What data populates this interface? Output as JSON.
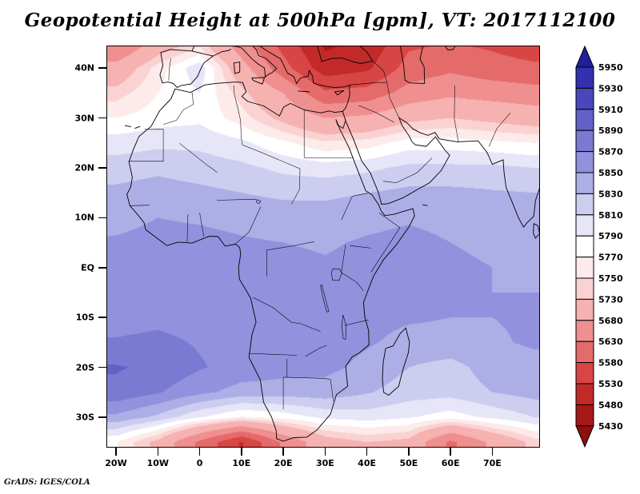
{
  "page": {
    "credit": "GrADS: IGES/COLA"
  },
  "chart_data": {
    "type": "heatmap",
    "title": "Geopotential Height at 500hPa [gpm], VT: 2017112100",
    "variable": "Geopotential Height",
    "pressure_level": "500hPa",
    "units": "gpm",
    "valid_time": "2017112100",
    "projection": "latlon",
    "region": "Africa / Europe / Middle East",
    "lon_range": [
      -22.3,
      81.4
    ],
    "lat_range": [
      -36.1,
      44.5
    ],
    "grid_on": false,
    "legend_position": "right-colorbar",
    "xticks": [
      {
        "value": -20,
        "label": "20W"
      },
      {
        "value": -10,
        "label": "10W"
      },
      {
        "value": 0,
        "label": "0"
      },
      {
        "value": 10,
        "label": "10E"
      },
      {
        "value": 20,
        "label": "20E"
      },
      {
        "value": 30,
        "label": "30E"
      },
      {
        "value": 40,
        "label": "40E"
      },
      {
        "value": 50,
        "label": "50E"
      },
      {
        "value": 60,
        "label": "60E"
      },
      {
        "value": 70,
        "label": "70E"
      }
    ],
    "yticks": [
      {
        "value": 40,
        "label": "40N"
      },
      {
        "value": 30,
        "label": "30N"
      },
      {
        "value": 20,
        "label": "20N"
      },
      {
        "value": 10,
        "label": "10N"
      },
      {
        "value": 0,
        "label": "EQ"
      },
      {
        "value": -10,
        "label": "10S"
      },
      {
        "value": -20,
        "label": "20S"
      },
      {
        "value": -30,
        "label": "30S"
      }
    ],
    "colorbar": {
      "levels": [
        5430,
        5480,
        5530,
        5580,
        5630,
        5680,
        5730,
        5750,
        5770,
        5790,
        5810,
        5830,
        5850,
        5870,
        5890,
        5910,
        5930,
        5950
      ],
      "labels_top_to_bottom": [
        "5950",
        "5930",
        "5910",
        "5890",
        "5870",
        "5850",
        "5830",
        "5810",
        "5790",
        "5770",
        "5750",
        "5730",
        "5680",
        "5630",
        "5580",
        "5530",
        "5480",
        "5430"
      ],
      "colors_low_to_high": [
        "#8f0f0f",
        "#a81717",
        "#c22a2a",
        "#d84545",
        "#e56a6a",
        "#ef8f8f",
        "#f6b1b1",
        "#fad2d2",
        "#fdeaea",
        "#ffffff",
        "#e6e6f8",
        "#cdcdf0",
        "#aeaee7",
        "#9191dd",
        "#7a7ad3",
        "#6161c8",
        "#4848bc",
        "#3232ae",
        "#20209c"
      ]
    },
    "grid": {
      "lons": [
        -20,
        -10,
        0,
        10,
        20,
        30,
        40,
        50,
        60,
        70,
        80
      ],
      "lats": [
        45,
        40,
        35,
        30,
        25,
        20,
        15,
        10,
        5,
        0,
        -5,
        -10,
        -15,
        -20,
        -25,
        -30,
        -35
      ],
      "values": [
        [
          5620,
          5700,
          5740,
          5650,
          5560,
          5470,
          5490,
          5570,
          5580,
          5570,
          5550
        ],
        [
          5700,
          5760,
          5805,
          5700,
          5600,
          5500,
          5520,
          5600,
          5620,
          5600,
          5590
        ],
        [
          5740,
          5770,
          5790,
          5740,
          5680,
          5590,
          5600,
          5650,
          5670,
          5660,
          5650
        ],
        [
          5770,
          5780,
          5785,
          5760,
          5720,
          5680,
          5690,
          5720,
          5730,
          5720,
          5710
        ],
        [
          5800,
          5805,
          5805,
          5795,
          5775,
          5755,
          5760,
          5780,
          5780,
          5775,
          5770
        ],
        [
          5820,
          5825,
          5820,
          5815,
          5805,
          5800,
          5805,
          5815,
          5815,
          5815,
          5810
        ],
        [
          5835,
          5840,
          5835,
          5830,
          5825,
          5825,
          5830,
          5835,
          5835,
          5832,
          5830
        ],
        [
          5845,
          5850,
          5848,
          5845,
          5842,
          5840,
          5845,
          5848,
          5845,
          5842,
          5840
        ],
        [
          5852,
          5855,
          5855,
          5852,
          5850,
          5848,
          5852,
          5855,
          5850,
          5848,
          5845
        ],
        [
          5855,
          5858,
          5858,
          5856,
          5855,
          5852,
          5855,
          5856,
          5852,
          5850,
          5848
        ],
        [
          5858,
          5860,
          5860,
          5858,
          5856,
          5855,
          5856,
          5855,
          5852,
          5850,
          5850
        ],
        [
          5862,
          5865,
          5862,
          5860,
          5858,
          5856,
          5855,
          5852,
          5850,
          5850,
          5852
        ],
        [
          5872,
          5875,
          5868,
          5862,
          5860,
          5858,
          5852,
          5845,
          5845,
          5848,
          5852
        ],
        [
          5892,
          5885,
          5872,
          5862,
          5858,
          5855,
          5845,
          5830,
          5822,
          5840,
          5845
        ],
        [
          5885,
          5872,
          5855,
          5842,
          5840,
          5842,
          5832,
          5820,
          5818,
          5830,
          5838
        ],
        [
          5845,
          5825,
          5792,
          5768,
          5778,
          5795,
          5800,
          5792,
          5780,
          5795,
          5810
        ],
        [
          5772,
          5720,
          5620,
          5525,
          5640,
          5712,
          5730,
          5720,
          5620,
          5690,
          5740
        ]
      ]
    }
  }
}
